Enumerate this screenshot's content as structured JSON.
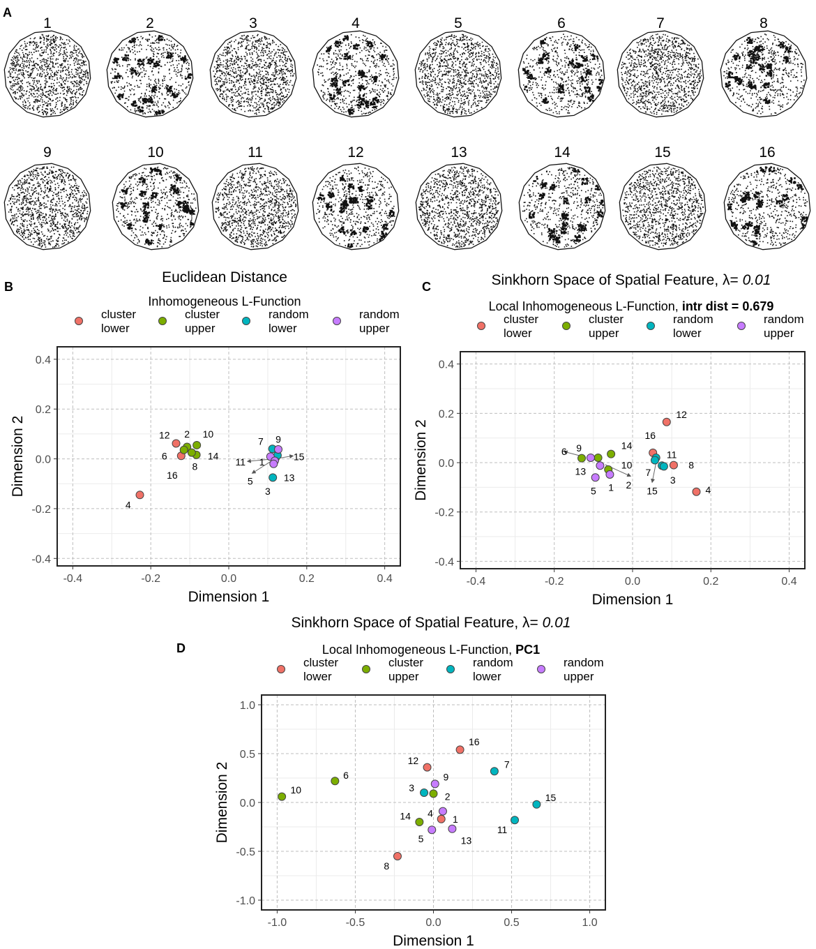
{
  "colors": {
    "cluster lower": "#f07167",
    "cluster upper": "#7cae00",
    "random lower": "#00b5bf",
    "random upper": "#c77cff",
    "stroke": "#444444"
  },
  "panelA": {
    "label": "A",
    "patterns": [
      {
        "id": "1",
        "type": "random"
      },
      {
        "id": "2",
        "type": "cluster"
      },
      {
        "id": "3",
        "type": "random"
      },
      {
        "id": "4",
        "type": "cluster"
      },
      {
        "id": "5",
        "type": "random"
      },
      {
        "id": "6",
        "type": "cluster"
      },
      {
        "id": "7",
        "type": "random"
      },
      {
        "id": "8",
        "type": "cluster"
      },
      {
        "id": "9",
        "type": "random"
      },
      {
        "id": "10",
        "type": "cluster"
      },
      {
        "id": "11",
        "type": "random"
      },
      {
        "id": "12",
        "type": "cluster"
      },
      {
        "id": "13",
        "type": "random"
      },
      {
        "id": "14",
        "type": "cluster"
      },
      {
        "id": "15",
        "type": "random"
      },
      {
        "id": "16",
        "type": "cluster"
      }
    ]
  },
  "chart_data": [
    {
      "type": "scatter",
      "panel": "B",
      "title": "Euclidean Distance",
      "subtitle": "Inhomogeneous L-Function",
      "subtitle_bold": "",
      "xlabel": "Dimension 1",
      "ylabel": "Dimension 2",
      "xlim": [
        -0.44,
        0.44
      ],
      "ylim": [
        -0.43,
        0.45
      ],
      "xticks": [
        -0.4,
        -0.2,
        0.0,
        0.2,
        0.4
      ],
      "yticks": [
        -0.4,
        -0.2,
        0.0,
        0.2,
        0.4
      ],
      "tick_labels_x": [
        "-0.4",
        "-0.2",
        "0.0",
        "0.2",
        "0.4"
      ],
      "tick_labels_y": [
        "-0.4",
        "-0.2",
        "0.0",
        "0.2",
        "0.4"
      ],
      "legend": [
        {
          "key": "cluster lower",
          "l1": "cluster",
          "l2": "lower"
        },
        {
          "key": "cluster upper",
          "l1": "cluster",
          "l2": "upper"
        },
        {
          "key": "random lower",
          "l1": "random",
          "l2": "lower"
        },
        {
          "key": "random upper",
          "l1": "random",
          "l2": "upper"
        }
      ],
      "points": [
        {
          "id": "12",
          "g": "cluster lower",
          "x": -0.135,
          "y": 0.062,
          "lx": -0.165,
          "ly": 0.095
        },
        {
          "id": "16",
          "g": "cluster lower",
          "x": -0.122,
          "y": 0.012,
          "lx": -0.145,
          "ly": -0.065
        },
        {
          "id": "4",
          "g": "cluster lower",
          "x": -0.228,
          "y": -0.145,
          "lx": -0.258,
          "ly": -0.185
        },
        {
          "id": "2",
          "g": "cluster upper",
          "x": -0.107,
          "y": 0.048,
          "lx": -0.107,
          "ly": 0.1
        },
        {
          "id": "6",
          "g": "cluster upper",
          "x": -0.115,
          "y": 0.036,
          "lx": -0.165,
          "ly": 0.012
        },
        {
          "id": "10",
          "g": "cluster upper",
          "x": -0.082,
          "y": 0.055,
          "lx": -0.053,
          "ly": 0.1
        },
        {
          "id": "14",
          "g": "cluster upper",
          "x": -0.083,
          "y": 0.016,
          "lx": -0.04,
          "ly": 0.012
        },
        {
          "id": "8",
          "g": "cluster upper",
          "x": -0.095,
          "y": 0.025,
          "lx": -0.087,
          "ly": -0.03
        },
        {
          "id": "7",
          "g": "random lower",
          "x": 0.112,
          "y": 0.04,
          "lx": 0.082,
          "ly": 0.07
        },
        {
          "id": "13",
          "g": "random lower",
          "x": 0.113,
          "y": -0.075,
          "lx": 0.155,
          "ly": -0.075
        },
        {
          "id": "3",
          "g": "random lower",
          "x": 0.12,
          "y": 0.003,
          "lx": 0.1,
          "ly": -0.13
        },
        {
          "id": "15",
          "g": "random lower",
          "x": 0.125,
          "y": 0.014,
          "lx": 0.18,
          "ly": 0.008
        },
        {
          "id": "9",
          "g": "random upper",
          "x": 0.127,
          "y": 0.038,
          "lx": 0.127,
          "ly": 0.078
        },
        {
          "id": "11",
          "g": "random upper",
          "x": 0.107,
          "y": 0.009,
          "lx": 0.03,
          "ly": -0.012
        },
        {
          "id": "1",
          "g": "random upper",
          "x": 0.118,
          "y": -0.008,
          "lx": 0.085,
          "ly": -0.012
        },
        {
          "id": "5",
          "g": "random upper",
          "x": 0.115,
          "y": -0.02,
          "lx": 0.055,
          "ly": -0.09
        }
      ],
      "arrows": [
        {
          "x1": 0.118,
          "y1": 0.0,
          "x2": 0.048,
          "y2": -0.01
        },
        {
          "x1": 0.118,
          "y1": 0.0,
          "x2": 0.165,
          "y2": 0.012
        },
        {
          "x1": 0.118,
          "y1": 0.0,
          "x2": 0.06,
          "y2": -0.058
        }
      ]
    },
    {
      "type": "scatter",
      "panel": "C",
      "title": "Sinkhorn Space of Spatial Feature,   ",
      "title_lambda": "λ=",
      "title_value": " 0.01",
      "subtitle": "Local Inhomogeneous L-Function, ",
      "subtitle_bold": "intr dist = 0.679",
      "xlabel": "Dimension 1",
      "ylabel": "Dimension 2",
      "xlim": [
        -0.44,
        0.44
      ],
      "ylim": [
        -0.43,
        0.45
      ],
      "xticks": [
        -0.4,
        -0.2,
        0.0,
        0.2,
        0.4
      ],
      "yticks": [
        -0.4,
        -0.2,
        0.0,
        0.2,
        0.4
      ],
      "tick_labels_x": [
        "-0.4",
        "-0.2",
        "0.0",
        "0.2",
        "0.4"
      ],
      "tick_labels_y": [
        "-0.4",
        "-0.2",
        "0.0",
        "0.2",
        "0.4"
      ],
      "legend": [
        {
          "key": "cluster lower",
          "l1": "cluster",
          "l2": "lower"
        },
        {
          "key": "cluster upper",
          "l1": "cluster",
          "l2": "upper"
        },
        {
          "key": "random lower",
          "l1": "random",
          "l2": "lower"
        },
        {
          "key": "random upper",
          "l1": "random",
          "l2": "upper"
        }
      ],
      "points": [
        {
          "id": "12",
          "g": "cluster lower",
          "x": 0.087,
          "y": 0.165,
          "lx": 0.125,
          "ly": 0.195
        },
        {
          "id": "16",
          "g": "cluster lower",
          "x": 0.052,
          "y": 0.04,
          "lx": 0.045,
          "ly": 0.11
        },
        {
          "id": "8",
          "g": "cluster lower",
          "x": 0.105,
          "y": -0.01,
          "lx": 0.15,
          "ly": -0.01
        },
        {
          "id": "4",
          "g": "cluster lower",
          "x": 0.163,
          "y": -0.118,
          "lx": 0.193,
          "ly": -0.11
        },
        {
          "id": "14",
          "g": "cluster upper",
          "x": -0.055,
          "y": 0.035,
          "lx": -0.015,
          "ly": 0.07
        },
        {
          "id": "6",
          "g": "cluster upper",
          "x": -0.13,
          "y": 0.018,
          "lx": -0.175,
          "ly": 0.045
        },
        {
          "id": "10",
          "g": "cluster upper",
          "x": -0.088,
          "y": 0.02,
          "lx": -0.015,
          "ly": -0.01
        },
        {
          "id": "2",
          "g": "cluster upper",
          "x": -0.062,
          "y": -0.028,
          "lx": -0.01,
          "ly": -0.09
        },
        {
          "id": "11",
          "g": "random lower",
          "x": 0.06,
          "y": 0.02,
          "lx": 0.1,
          "ly": 0.032
        },
        {
          "id": "3",
          "g": "random lower",
          "x": 0.075,
          "y": -0.012,
          "lx": 0.103,
          "ly": -0.07
        },
        {
          "id": "7",
          "g": "random lower",
          "x": 0.08,
          "y": -0.015,
          "lx": 0.04,
          "ly": -0.04
        },
        {
          "id": "15",
          "g": "random lower",
          "x": 0.057,
          "y": 0.01,
          "lx": 0.05,
          "ly": -0.115
        },
        {
          "id": "9",
          "g": "random upper",
          "x": -0.107,
          "y": 0.02,
          "lx": -0.137,
          "ly": 0.06
        },
        {
          "id": "13",
          "g": "random upper",
          "x": -0.083,
          "y": -0.012,
          "lx": -0.133,
          "ly": -0.035
        },
        {
          "id": "5",
          "g": "random upper",
          "x": -0.095,
          "y": -0.06,
          "lx": -0.1,
          "ly": -0.115
        },
        {
          "id": "1",
          "g": "random upper",
          "x": -0.058,
          "y": -0.048,
          "lx": -0.055,
          "ly": -0.1
        }
      ],
      "arrows": [
        {
          "x1": -0.12,
          "y1": 0.022,
          "x2": -0.175,
          "y2": 0.045
        },
        {
          "x1": -0.07,
          "y1": -0.008,
          "x2": -0.005,
          "y2": -0.055
        },
        {
          "x1": 0.06,
          "y1": 0.0,
          "x2": 0.05,
          "y2": -0.08
        }
      ]
    },
    {
      "type": "scatter",
      "panel": "D",
      "title": "Sinkhorn Space of Spatial Feature,   ",
      "title_lambda": "λ=",
      "title_value": " 0.01",
      "subtitle": "Local Inhomogeneous L-Function, ",
      "subtitle_bold": "PC1",
      "xlabel": "Dimension 1",
      "ylabel": "Dimension 2",
      "xlim": [
        -1.1,
        1.1
      ],
      "ylim": [
        -1.1,
        1.1
      ],
      "xticks": [
        -1.0,
        -0.5,
        0.0,
        0.5,
        1.0
      ],
      "yticks": [
        -1.0,
        -0.5,
        0.0,
        0.5,
        1.0
      ],
      "tick_labels_x": [
        "-1.0",
        "-0.5",
        "0.0",
        "0.5",
        "1.0"
      ],
      "tick_labels_y": [
        "-1.0",
        "-0.5",
        "0.0",
        "0.5",
        "1.0"
      ],
      "legend": [
        {
          "key": "cluster lower",
          "l1": "cluster",
          "l2": "lower"
        },
        {
          "key": "cluster upper",
          "l1": "cluster",
          "l2": "upper"
        },
        {
          "key": "random lower",
          "l1": "random",
          "l2": "lower"
        },
        {
          "key": "random upper",
          "l1": "random",
          "l2": "upper"
        }
      ],
      "points": [
        {
          "id": "16",
          "g": "cluster lower",
          "x": 0.17,
          "y": 0.54,
          "lx": 0.26,
          "ly": 0.62
        },
        {
          "id": "12",
          "g": "cluster lower",
          "x": -0.04,
          "y": 0.36,
          "lx": -0.13,
          "ly": 0.43
        },
        {
          "id": "4",
          "g": "cluster lower",
          "x": 0.05,
          "y": -0.17,
          "lx": -0.02,
          "ly": -0.11
        },
        {
          "id": "8",
          "g": "cluster lower",
          "x": -0.23,
          "y": -0.55,
          "lx": -0.3,
          "ly": -0.65
        },
        {
          "id": "10",
          "g": "cluster upper",
          "x": -0.97,
          "y": 0.06,
          "lx": -0.88,
          "ly": 0.13
        },
        {
          "id": "6",
          "g": "cluster upper",
          "x": -0.63,
          "y": 0.22,
          "lx": -0.56,
          "ly": 0.28
        },
        {
          "id": "2",
          "g": "cluster upper",
          "x": 0.0,
          "y": 0.09,
          "lx": 0.09,
          "ly": 0.06
        },
        {
          "id": "14",
          "g": "cluster upper",
          "x": -0.09,
          "y": -0.2,
          "lx": -0.18,
          "ly": -0.14
        },
        {
          "id": "7",
          "g": "random lower",
          "x": 0.39,
          "y": 0.32,
          "lx": 0.47,
          "ly": 0.39
        },
        {
          "id": "3",
          "g": "random lower",
          "x": -0.06,
          "y": 0.1,
          "lx": -0.14,
          "ly": 0.15
        },
        {
          "id": "15",
          "g": "random lower",
          "x": 0.66,
          "y": -0.02,
          "lx": 0.75,
          "ly": 0.05
        },
        {
          "id": "11",
          "g": "random lower",
          "x": 0.52,
          "y": -0.18,
          "lx": 0.44,
          "ly": -0.28
        },
        {
          "id": "9",
          "g": "random upper",
          "x": 0.01,
          "y": 0.19,
          "lx": 0.08,
          "ly": 0.26
        },
        {
          "id": "1",
          "g": "random upper",
          "x": 0.06,
          "y": -0.09,
          "lx": 0.14,
          "ly": -0.17
        },
        {
          "id": "5",
          "g": "random upper",
          "x": -0.01,
          "y": -0.28,
          "lx": -0.08,
          "ly": -0.37
        },
        {
          "id": "13",
          "g": "random upper",
          "x": 0.12,
          "y": -0.27,
          "lx": 0.21,
          "ly": -0.39
        }
      ],
      "arrows": []
    }
  ]
}
